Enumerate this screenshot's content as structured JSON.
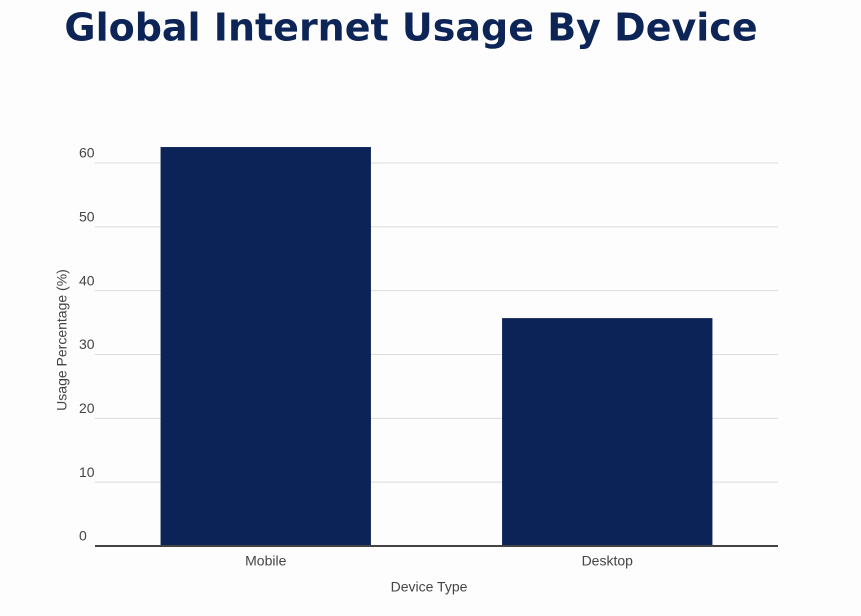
{
  "chart_data": {
    "type": "bar",
    "title": "Global Internet Usage By Device",
    "x_label": "Device Type",
    "y_label": "Usage Percentage (%)",
    "categories": [
      "Mobile",
      "Desktop"
    ],
    "values": [
      62.5,
      35.7
    ],
    "color": "#0b2357",
    "ylim": [
      0,
      65
    ],
    "yticks": [
      0,
      10,
      20,
      30,
      40,
      50,
      60
    ],
    "grid": true
  }
}
